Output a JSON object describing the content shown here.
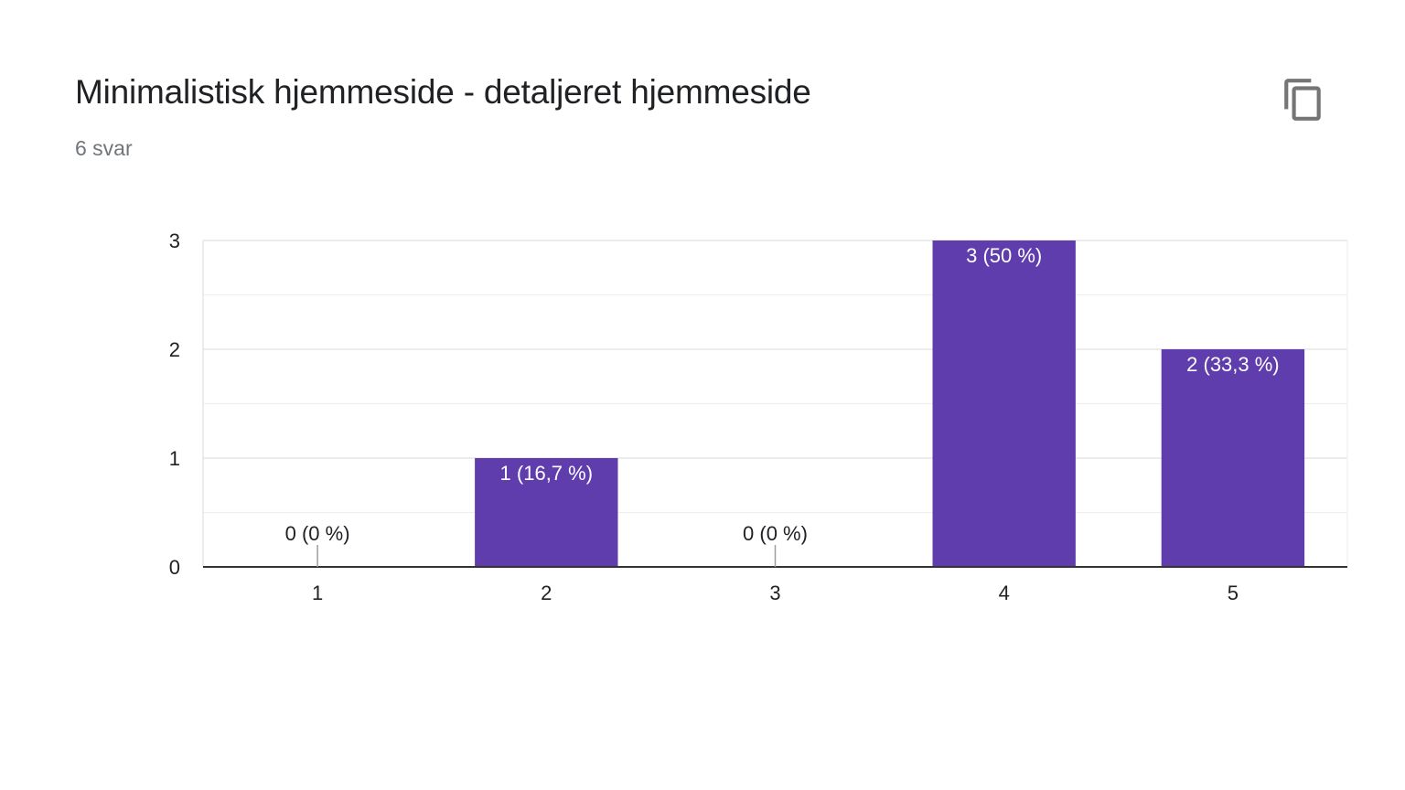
{
  "card": {
    "title": "Minimalistisk hjemmeside - detaljeret hjemmeside",
    "response_count": "6 svar",
    "copy_icon": "copy-icon"
  },
  "colors": {
    "bar": "#5f3dad",
    "grid": "#e8e8e8",
    "axis": "#333333",
    "title": "#202124",
    "subtitle": "#70757a",
    "icon": "#757575"
  },
  "chart_data": {
    "type": "bar",
    "categories": [
      "1",
      "2",
      "3",
      "4",
      "5"
    ],
    "values": [
      0,
      1,
      0,
      3,
      2
    ],
    "data_labels": [
      "0 (0 %)",
      "1 (16,7 %)",
      "0 (0 %)",
      "3 (50 %)",
      "2 (33,3 %)"
    ],
    "y_ticks": [
      "0",
      "1",
      "2",
      "3"
    ],
    "ylim": [
      0,
      3
    ],
    "minor_gridlines": true,
    "legend": "none"
  }
}
